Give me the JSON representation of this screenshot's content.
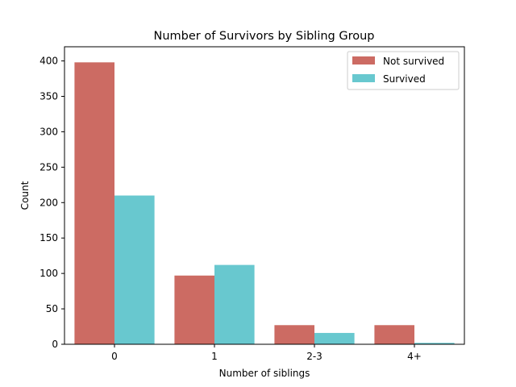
{
  "chart_data": {
    "type": "bar",
    "title": "Number of Survivors by Sibling Group",
    "xlabel": "Number of siblings",
    "ylabel": "Count",
    "categories": [
      "0",
      "1",
      "2-3",
      "4+"
    ],
    "ylim": [
      0,
      420
    ],
    "yticks": [
      0,
      50,
      100,
      150,
      200,
      250,
      300,
      350,
      400
    ],
    "grid": false,
    "legend_position": "top-right",
    "series": [
      {
        "name": "Not survived",
        "color": "#cc6b63",
        "values": [
          398,
          97,
          27,
          27
        ]
      },
      {
        "name": "Survived",
        "color": "#68c8cf",
        "values": [
          210,
          112,
          16,
          2
        ]
      }
    ]
  }
}
